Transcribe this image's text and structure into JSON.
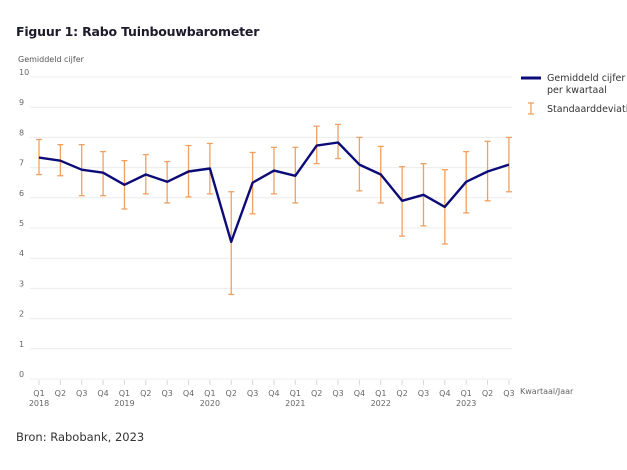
{
  "chart_data": {
    "type": "line",
    "title": "Figuur 1: Rabo Tuinbouwbarometer",
    "ylabel": "Gemiddeld cijfer",
    "xlabel": "Kwartaal/Jaar",
    "ylim": [
      0,
      10
    ],
    "yticks": [
      0,
      1,
      2,
      3,
      4,
      5,
      6,
      7,
      8,
      9,
      10
    ],
    "grid": true,
    "legend_position": "right",
    "categories": [
      {
        "q": "Q1",
        "year": "2018"
      },
      {
        "q": "Q2",
        "year": ""
      },
      {
        "q": "Q3",
        "year": ""
      },
      {
        "q": "Q4",
        "year": ""
      },
      {
        "q": "Q1",
        "year": "2019"
      },
      {
        "q": "Q2",
        "year": ""
      },
      {
        "q": "Q3",
        "year": ""
      },
      {
        "q": "Q4",
        "year": ""
      },
      {
        "q": "Q1",
        "year": "2020"
      },
      {
        "q": "Q2",
        "year": ""
      },
      {
        "q": "Q3",
        "year": ""
      },
      {
        "q": "Q4",
        "year": ""
      },
      {
        "q": "Q1",
        "year": "2021"
      },
      {
        "q": "Q2",
        "year": ""
      },
      {
        "q": "Q3",
        "year": ""
      },
      {
        "q": "Q4",
        "year": ""
      },
      {
        "q": "Q1",
        "year": "2022"
      },
      {
        "q": "Q2",
        "year": ""
      },
      {
        "q": "Q3",
        "year": ""
      },
      {
        "q": "Q4",
        "year": ""
      },
      {
        "q": "Q1",
        "year": "2023"
      },
      {
        "q": "Q2",
        "year": ""
      },
      {
        "q": "Q3",
        "year": ""
      }
    ],
    "series": [
      {
        "name": "Gemiddeld cijfer per kwartaal",
        "color": "#0c0c78",
        "values": [
          7.33,
          7.23,
          6.93,
          6.83,
          6.43,
          6.77,
          6.53,
          6.87,
          6.97,
          4.54,
          6.5,
          6.9,
          6.73,
          7.73,
          7.83,
          7.1,
          6.77,
          5.9,
          6.1,
          5.7,
          6.53,
          6.87,
          7.1
        ]
      }
    ],
    "error_bars": {
      "name": "Standaarddeviatie",
      "color": "#f0a060",
      "upper": [
        7.93,
        7.76,
        7.76,
        7.53,
        7.23,
        7.43,
        7.2,
        7.73,
        7.8,
        6.2,
        7.5,
        7.67,
        7.67,
        8.37,
        8.43,
        8.0,
        7.7,
        7.03,
        7.13,
        6.93,
        7.53,
        7.87,
        8.0
      ],
      "lower": [
        6.77,
        6.73,
        6.07,
        6.07,
        5.63,
        6.13,
        5.83,
        6.03,
        6.13,
        2.8,
        5.47,
        6.13,
        5.83,
        7.13,
        7.3,
        6.23,
        5.83,
        4.73,
        5.07,
        4.47,
        5.5,
        5.9,
        6.2
      ]
    },
    "legend": [
      {
        "label_line1": "Gemiddeld cijfer",
        "label_line2": "per kwartaal",
        "kind": "line"
      },
      {
        "label_line1": "Standaarddeviatie",
        "kind": "errorbar"
      }
    ]
  },
  "source": "Bron: Rabobank, 2023"
}
